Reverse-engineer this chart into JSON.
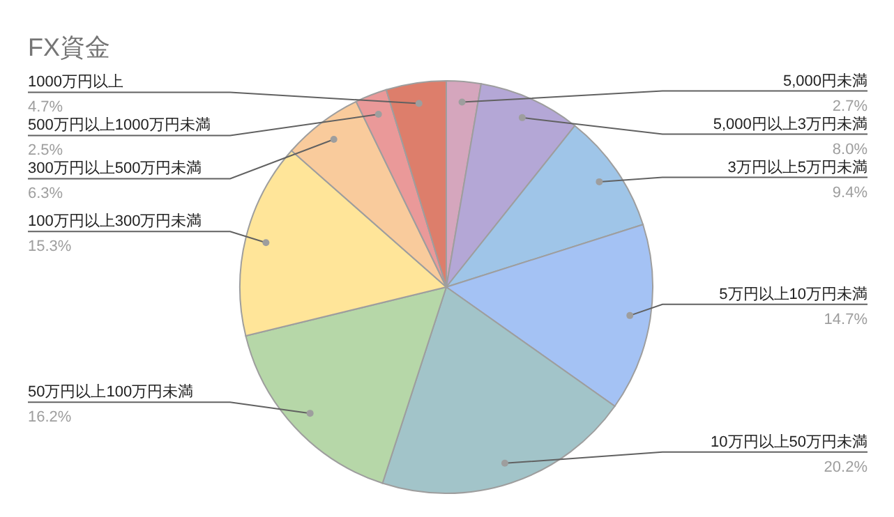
{
  "chart_data": {
    "type": "pie",
    "title": "FX資金",
    "categories": [
      "5,000円未満",
      "5,000円以上3万円未満",
      "3万円以上5万円未満",
      "5万円以上10万円未満",
      "10万円以上50万円未満",
      "50万円以上100万円未満",
      "100万円以上300万円未満",
      "300万円以上500万円未満",
      "500万円以上1000万円未満",
      "1000万円以上"
    ],
    "values": [
      2.7,
      8.0,
      9.4,
      14.7,
      20.2,
      16.2,
      15.3,
      6.3,
      2.5,
      4.7
    ],
    "value_labels": [
      "2.7%",
      "8.0%",
      "9.4%",
      "14.7%",
      "20.2%",
      "16.2%",
      "15.3%",
      "6.3%",
      "2.5%",
      "4.7%"
    ],
    "colors": [
      "#d5a6bd",
      "#b4a7d6",
      "#9fc5e8",
      "#a4c2f4",
      "#a2c4c9",
      "#b6d7a8",
      "#ffe599",
      "#f9cb9c",
      "#ea9999",
      "#dd7e6b"
    ]
  }
}
